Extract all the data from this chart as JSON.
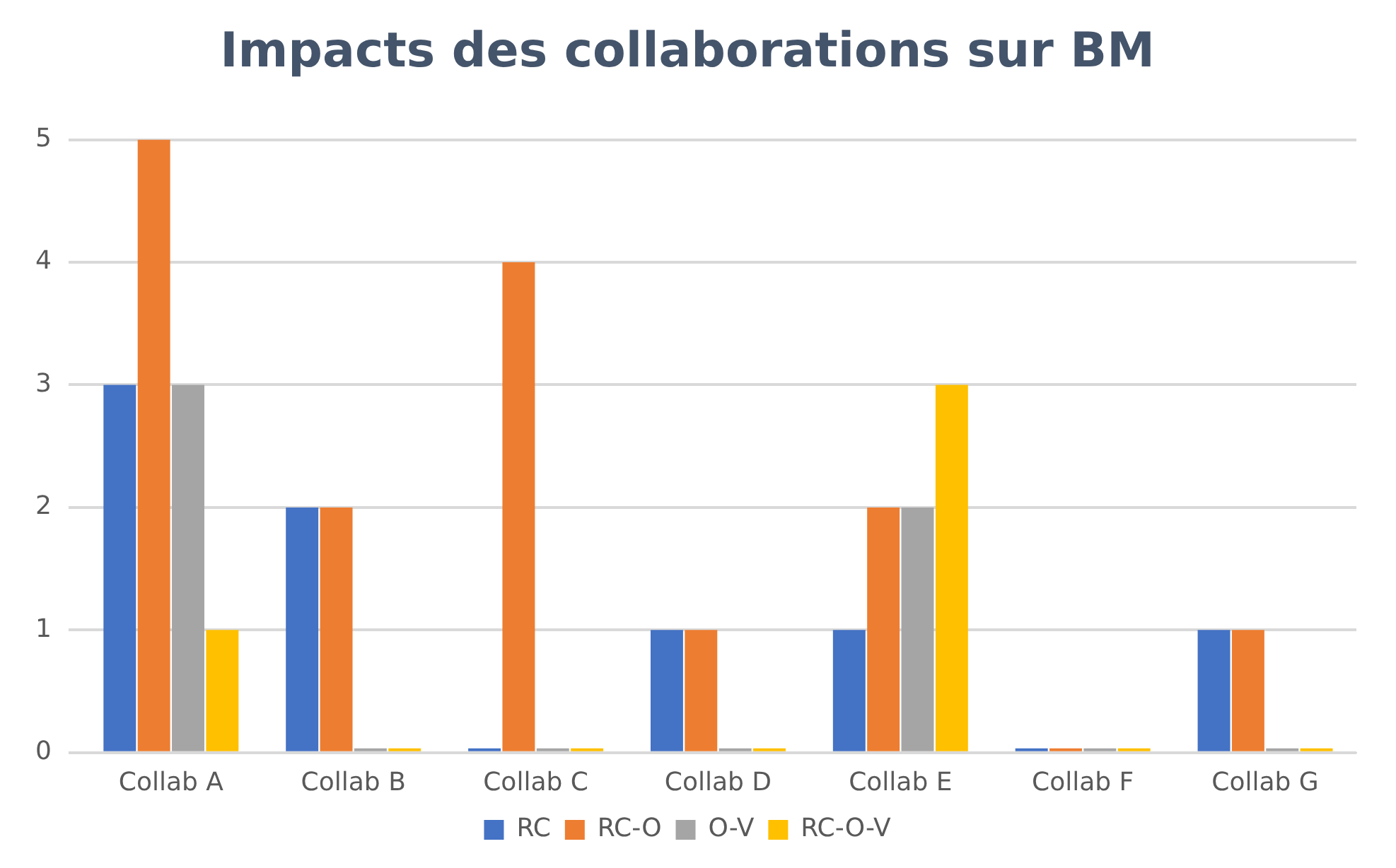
{
  "chart_data": {
    "type": "bar",
    "title": "Impacts des collaborations sur BM",
    "categories": [
      "Collab A",
      "Collab B",
      "Collab C",
      "Collab D",
      "Collab E",
      "Collab F",
      "Collab G"
    ],
    "series": [
      {
        "name": "RC",
        "color": "#4472c4",
        "values": [
          3,
          2,
          0,
          1,
          1,
          0,
          1
        ]
      },
      {
        "name": "RC-O",
        "color": "#ed7d31",
        "values": [
          5,
          2,
          4,
          1,
          2,
          0,
          1
        ]
      },
      {
        "name": "O-V",
        "color": "#a5a5a5",
        "values": [
          3,
          0,
          0,
          0,
          2,
          0,
          0
        ]
      },
      {
        "name": "RC-O-V",
        "color": "#ffc000",
        "values": [
          1,
          0,
          0,
          0,
          3,
          0,
          0
        ]
      }
    ],
    "ylim": [
      0,
      5
    ],
    "yticks": [
      0,
      1,
      2,
      3,
      4,
      5
    ],
    "grid": "y",
    "legend": "bottom"
  }
}
